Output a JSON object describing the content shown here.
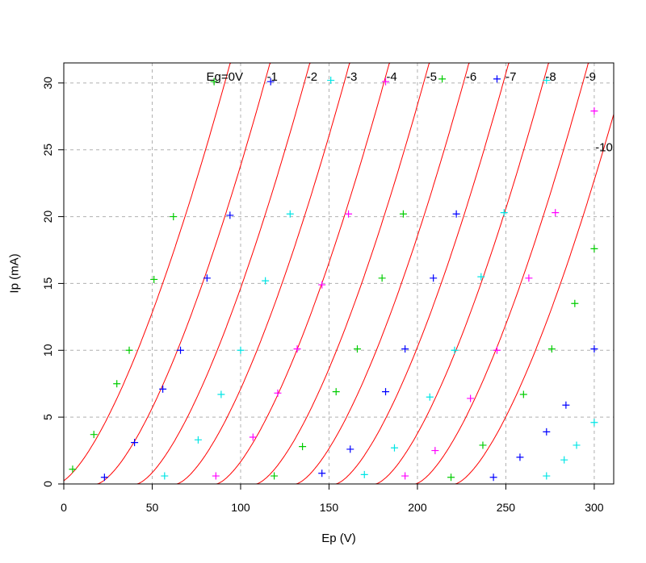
{
  "chart_data": {
    "type": "scatter",
    "title": "",
    "xlabel": "Ep (V)",
    "ylabel": "Ip (mA)",
    "xlim": [
      0,
      311
    ],
    "ylim": [
      0,
      31.5
    ],
    "xticks": [
      0,
      50,
      100,
      150,
      200,
      250,
      300
    ],
    "yticks": [
      0,
      5,
      10,
      15,
      20,
      25,
      30
    ],
    "grid": true,
    "curve_color": "#ff0000",
    "model": {
      "k": 0.0325,
      "exp": 1.5,
      "mu": 22.5,
      "offset": 3.8
    },
    "curve_labels": [
      {
        "text": "Eg=0V",
        "eg": 0
      },
      {
        "text": "-1",
        "eg": -1
      },
      {
        "text": "-2",
        "eg": -2
      },
      {
        "text": "-3",
        "eg": -3
      },
      {
        "text": "-4",
        "eg": -4
      },
      {
        "text": "-5",
        "eg": -5
      },
      {
        "text": "-6",
        "eg": -6
      },
      {
        "text": "-7",
        "eg": -7
      },
      {
        "text": "-8",
        "eg": -8
      },
      {
        "text": "-9",
        "eg": -9
      },
      {
        "text": "-10",
        "eg": -10
      }
    ],
    "series": [
      {
        "eg": 0,
        "color": "#00cc00",
        "points": [
          [
            5,
            1.1
          ],
          [
            17,
            3.7
          ],
          [
            30,
            7.5
          ],
          [
            37,
            10.0
          ],
          [
            51,
            15.3
          ],
          [
            62,
            20.0
          ],
          [
            85,
            30.1
          ]
        ]
      },
      {
        "eg": -1,
        "color": "#0000ff",
        "points": [
          [
            23,
            0.5
          ],
          [
            40,
            3.1
          ],
          [
            56,
            7.1
          ],
          [
            66,
            10.0
          ],
          [
            81,
            15.4
          ],
          [
            94,
            20.1
          ],
          [
            117,
            30.1
          ]
        ]
      },
      {
        "eg": -2,
        "color": "#00e5e5",
        "points": [
          [
            57,
            0.6
          ],
          [
            76,
            3.3
          ],
          [
            89,
            6.7
          ],
          [
            100,
            10.0
          ],
          [
            114,
            15.2
          ],
          [
            128,
            20.2
          ],
          [
            151,
            30.2
          ]
        ]
      },
      {
        "eg": -3,
        "color": "#ff00ff",
        "points": [
          [
            86,
            0.6
          ],
          [
            107,
            3.5
          ],
          [
            121,
            6.8
          ],
          [
            132,
            10.1
          ],
          [
            146,
            14.9
          ],
          [
            161,
            20.2
          ],
          [
            182,
            30.1
          ]
        ]
      },
      {
        "eg": -4,
        "color": "#00cc00",
        "points": [
          [
            119,
            0.6
          ],
          [
            135,
            2.8
          ],
          [
            154,
            6.9
          ],
          [
            166,
            10.1
          ],
          [
            180,
            15.4
          ],
          [
            192,
            20.2
          ],
          [
            214,
            30.3
          ]
        ]
      },
      {
        "eg": -5,
        "color": "#0000ff",
        "points": [
          [
            146,
            0.8
          ],
          [
            162,
            2.6
          ],
          [
            182,
            6.9
          ],
          [
            193,
            10.1
          ],
          [
            209,
            15.4
          ],
          [
            222,
            20.2
          ],
          [
            245,
            30.3
          ]
        ]
      },
      {
        "eg": -6,
        "color": "#00e5e5",
        "points": [
          [
            170,
            0.7
          ],
          [
            187,
            2.7
          ],
          [
            207,
            6.5
          ],
          [
            221,
            10.0
          ],
          [
            236,
            15.5
          ],
          [
            249,
            20.3
          ],
          [
            273,
            30.2
          ]
        ]
      },
      {
        "eg": -7,
        "color": "#ff00ff",
        "points": [
          [
            193,
            0.6
          ],
          [
            210,
            2.5
          ],
          [
            230,
            6.4
          ],
          [
            245,
            10.0
          ],
          [
            263,
            15.4
          ],
          [
            278,
            20.3
          ],
          [
            300,
            27.9
          ]
        ]
      },
      {
        "eg": -8,
        "color": "#00cc00",
        "points": [
          [
            219,
            0.5
          ],
          [
            237,
            2.9
          ],
          [
            260,
            6.7
          ],
          [
            276,
            10.1
          ],
          [
            289,
            13.5
          ],
          [
            300,
            17.6
          ]
        ]
      },
      {
        "eg": -9,
        "color": "#0000ff",
        "points": [
          [
            243,
            0.5
          ],
          [
            258,
            2.0
          ],
          [
            273,
            3.9
          ],
          [
            284,
            5.9
          ],
          [
            300,
            10.1
          ]
        ]
      },
      {
        "eg": -10,
        "color": "#00e5e5",
        "points": [
          [
            273,
            0.6
          ],
          [
            283,
            1.8
          ],
          [
            290,
            2.9
          ],
          [
            300,
            4.6
          ]
        ]
      }
    ]
  }
}
